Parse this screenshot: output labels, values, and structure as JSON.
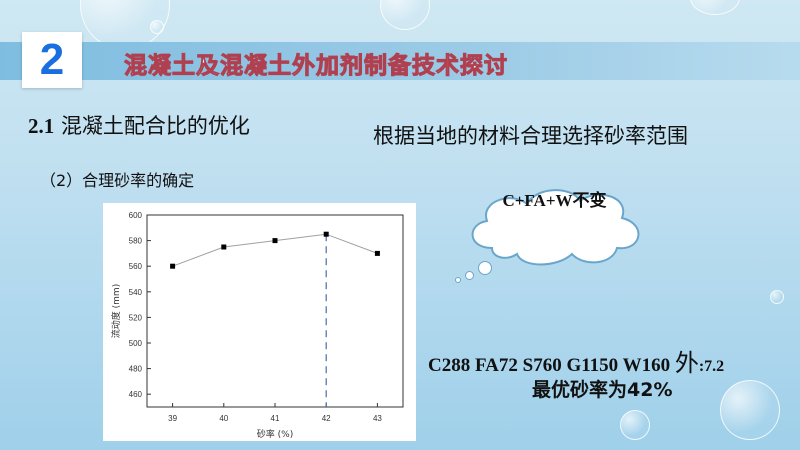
{
  "slide": {
    "section_number": "2",
    "section_title": "混凝土及混凝土外加剂制备技术探讨",
    "subtitle_num": "2.1",
    "subtitle_text": "混凝土配合比的优化",
    "sub_item": "（2）合理砂率的确定",
    "right_heading": "根据当地的材料合理选择砂率范围",
    "callout": "C+FA+W不变",
    "mix_text": "C288  FA72  S760  G1150  W160",
    "mix_extra_char": "外",
    "mix_extra_value": ":7.2",
    "conclusion": "最优砂率为42%"
  },
  "chart_data": {
    "type": "line",
    "x": [
      39,
      40,
      41,
      42,
      43
    ],
    "y": [
      560,
      575,
      580,
      585,
      570
    ],
    "xlabel": "砂率 (%)",
    "ylabel": "流动度 (mm)",
    "xlim": [
      38.5,
      43.5
    ],
    "ylim": [
      450,
      600
    ],
    "xticks": [
      "39",
      "40",
      "41",
      "42",
      "43"
    ],
    "yticks": [
      "460",
      "480",
      "500",
      "520",
      "540",
      "560",
      "580",
      "600"
    ],
    "marker": "square",
    "line_color": "#a0a0a0",
    "reference_line": {
      "x": 42,
      "style": "dashed",
      "color": "#4a6bb0"
    },
    "grid": false
  }
}
